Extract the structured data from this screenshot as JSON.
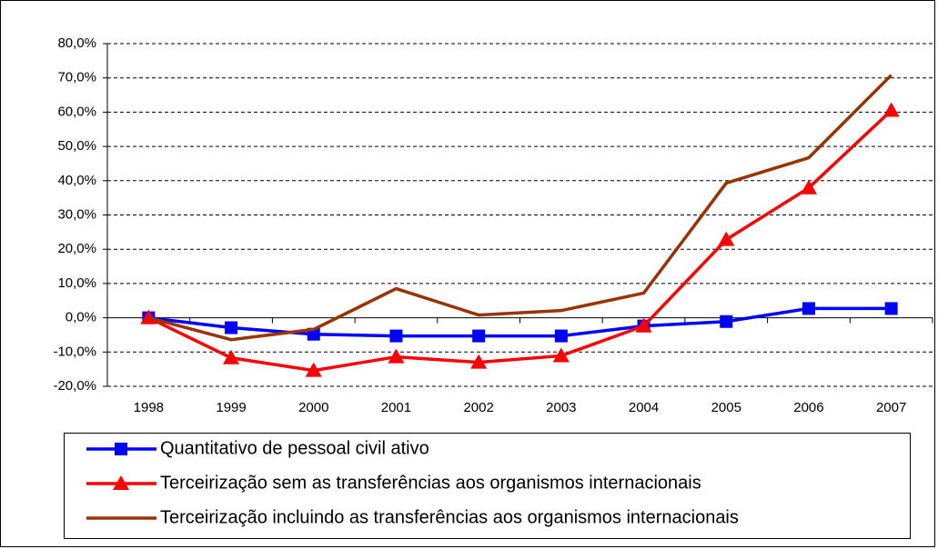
{
  "chart_data": {
    "type": "line",
    "categories": [
      "1998",
      "1999",
      "2000",
      "2001",
      "2002",
      "2003",
      "2004",
      "2005",
      "2006",
      "2007"
    ],
    "series": [
      {
        "name": "Quantitativo de pessoal civil ativo",
        "color": "#0000ff",
        "marker": "square",
        "values": [
          0,
          -2.9,
          -4.8,
          -5.3,
          -5.3,
          -5.3,
          -2.4,
          -1.1,
          2.7,
          2.7
        ]
      },
      {
        "name": "Terceirização sem as transferências aos organismos internacionais",
        "color": "#ff0000",
        "marker": "triangle",
        "values": [
          0,
          -11.7,
          -15.4,
          -11.4,
          -13,
          -11.1,
          -2.4,
          22.8,
          37.9,
          60.5
        ]
      },
      {
        "name": "Terceirização incluindo as transferências aos organismos internacionais",
        "color": "#993300",
        "values": [
          0,
          -6.4,
          -3.4,
          8.5,
          0.8,
          2.1,
          7.2,
          39.3,
          46.7,
          70.8
        ]
      }
    ],
    "ylim": [
      -20,
      80
    ],
    "yticks": [
      {
        "value": -20,
        "label": "-20,0%"
      },
      {
        "value": -10,
        "label": "-10,0%"
      },
      {
        "value": 0,
        "label": "0,0%"
      },
      {
        "value": 10,
        "label": "10,0%"
      },
      {
        "value": 20,
        "label": "20,0%"
      },
      {
        "value": 30,
        "label": "30,0%"
      },
      {
        "value": 40,
        "label": "40,0%"
      },
      {
        "value": 50,
        "label": "50,0%"
      },
      {
        "value": 60,
        "label": "60,0%"
      },
      {
        "value": 70,
        "label": "70,0%"
      },
      {
        "value": 80,
        "label": "80,0%"
      }
    ],
    "grid": true,
    "legend": "bottom"
  }
}
